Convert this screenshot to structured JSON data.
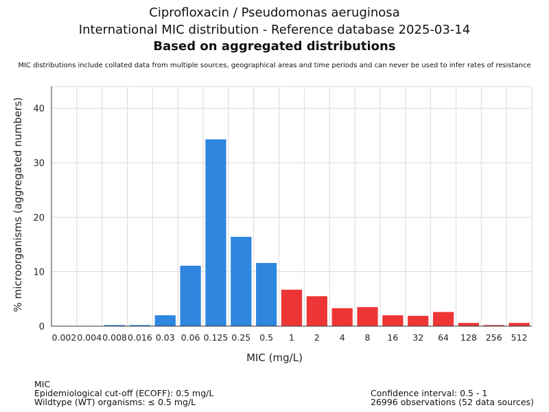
{
  "chart_data": {
    "type": "bar",
    "title": "Ciprofloxacin / Pseudomonas aeruginosa",
    "subtitle": "International MIC distribution - Reference database 2025-03-14",
    "subtitle2": "Based on aggregated distributions",
    "note": "MIC distributions include collated data from multiple sources, geographical areas and time periods and can never be used to infer rates of resistance",
    "xlabel": "MIC (mg/L)",
    "ylabel": "% microorganisms (aggregated numbers)",
    "ylim": [
      0,
      44
    ],
    "yticks": [
      0,
      10,
      20,
      30,
      40
    ],
    "categories": [
      "0.002",
      "0.004",
      "0.008",
      "0.016",
      "0.03",
      "0.06",
      "0.125",
      "0.25",
      "0.5",
      "1",
      "2",
      "4",
      "8",
      "16",
      "32",
      "64",
      "128",
      "256",
      "512"
    ],
    "values": [
      0.05,
      0.05,
      0.2,
      0.2,
      2.0,
      11.1,
      34.3,
      16.4,
      11.6,
      6.7,
      5.5,
      3.3,
      3.5,
      2.0,
      1.9,
      2.6,
      0.6,
      0.2,
      0.6
    ],
    "colors": {
      "wildtype": "#2e86de",
      "non_wildtype": "#ee3535",
      "grid": "#d9d9d9",
      "axis": "#333333"
    },
    "ecoff_value": 0.5
  },
  "footer": {
    "left_line1": "MIC",
    "left_line2": "Epidemiological cut-off (ECOFF): 0.5 mg/L",
    "left_line3": "Wildtype (WT) organisms: ≤ 0.5 mg/L",
    "right_line1": "Confidence interval: 0.5 - 1",
    "right_line2": "26996 observations (52 data sources)"
  }
}
